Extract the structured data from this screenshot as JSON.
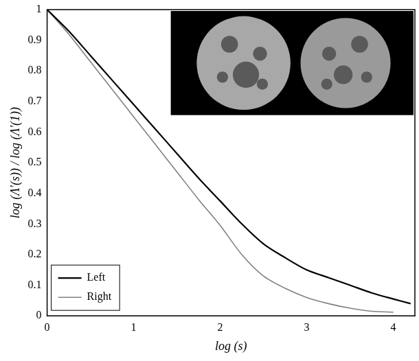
{
  "chart_data": {
    "type": "line",
    "x_label": "log (s)",
    "y_label": "log (Λ'(s)) / log (Λ'(1))",
    "x": [
      0,
      0.25,
      0.5,
      0.75,
      1,
      1.25,
      1.5,
      1.75,
      2,
      2.25,
      2.5,
      2.75,
      3,
      3.25,
      3.5,
      3.75,
      4,
      4.2
    ],
    "series": [
      {
        "name": "Left",
        "color": "#000000",
        "values": [
          1,
          0.93,
          0.85,
          0.77,
          0.69,
          0.61,
          0.53,
          0.45,
          0.375,
          0.3,
          0.235,
          0.19,
          0.15,
          0.125,
          0.1,
          0.075,
          0.055,
          0.04
        ]
      },
      {
        "name": "Right",
        "color": "#808080",
        "values": [
          1,
          0.92,
          0.83,
          0.74,
          0.65,
          0.56,
          0.47,
          0.38,
          0.295,
          0.2,
          0.13,
          0.09,
          0.06,
          0.04,
          0.025,
          0.015,
          0.012,
          null
        ]
      }
    ],
    "xlim": [
      0,
      4.25
    ],
    "xticks": [
      0,
      1,
      2,
      3,
      4
    ],
    "ylim": [
      0,
      1
    ],
    "yticks": [
      0,
      0.1,
      0.2,
      0.3,
      0.4,
      0.5,
      0.6,
      0.7,
      0.8,
      0.9,
      1
    ],
    "grid": false,
    "legend": "lower left"
  }
}
